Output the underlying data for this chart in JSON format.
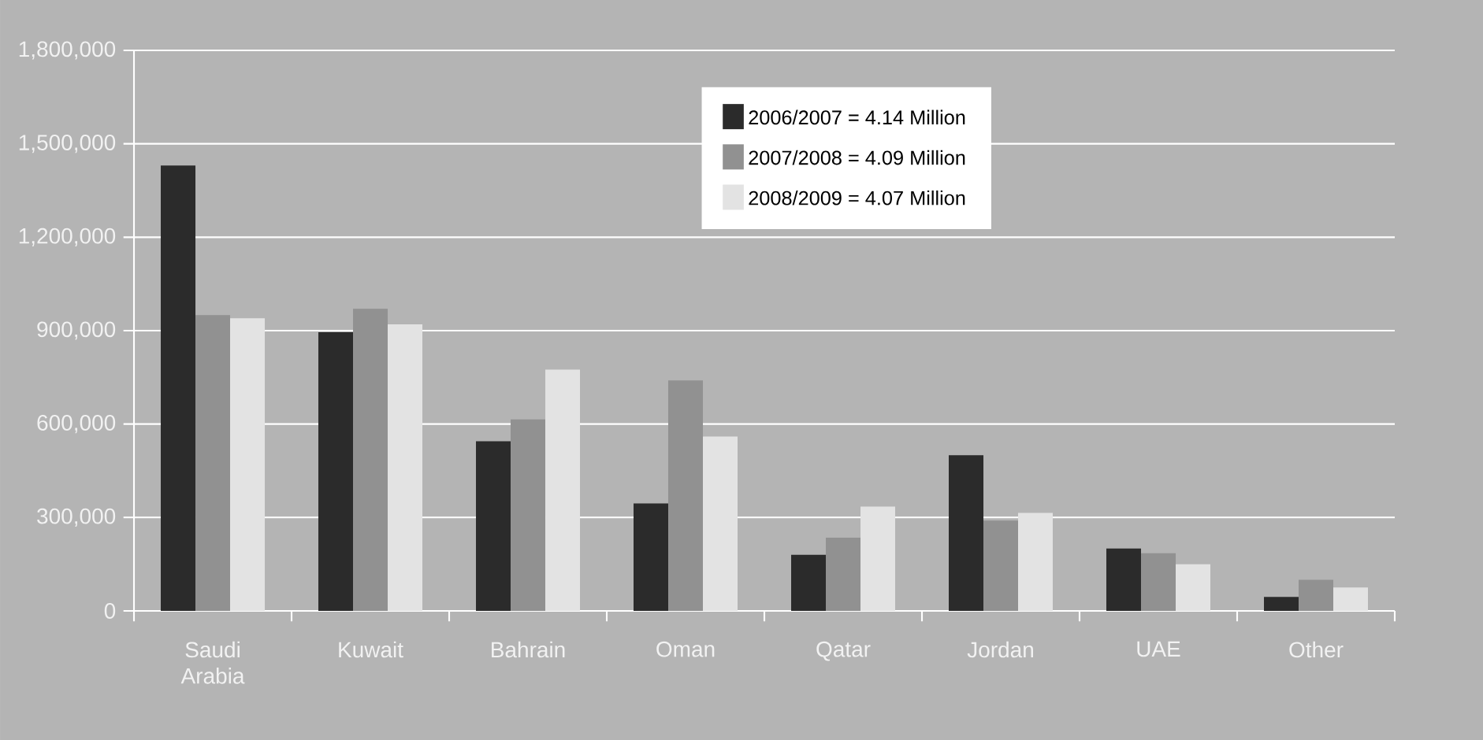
{
  "chart_data": {
    "type": "bar",
    "categories": [
      "Saudi Arabia",
      "Kuwait",
      "Bahrain",
      "Oman",
      "Qatar",
      "Jordan",
      "UAE",
      "Other"
    ],
    "series": [
      {
        "name": "2006/2007 = 4.14 Million",
        "color": "#2b2b2b",
        "values": [
          1430000,
          895000,
          545000,
          345000,
          180000,
          500000,
          200000,
          45000
        ]
      },
      {
        "name": "2007/2008 = 4.09 Million",
        "color": "#919191",
        "values": [
          950000,
          970000,
          615000,
          740000,
          235000,
          290000,
          185000,
          100000
        ]
      },
      {
        "name": "2008/2009 = 4.07 Million",
        "color": "#e3e3e3",
        "values": [
          940000,
          920000,
          775000,
          560000,
          335000,
          315000,
          150000,
          75000
        ]
      }
    ],
    "ylim": [
      0,
      1800000
    ],
    "yticks": [
      {
        "value": 0,
        "label": "0"
      },
      {
        "value": 300000,
        "label": "300,000"
      },
      {
        "value": 600000,
        "label": "600,000"
      },
      {
        "value": 900000,
        "label": "900,000"
      },
      {
        "value": 1200000,
        "label": "1,200,000"
      },
      {
        "value": 1500000,
        "label": "1,500,000"
      },
      {
        "value": 1800000,
        "label": "1,800,000"
      }
    ],
    "grid": "y",
    "legend": "top"
  }
}
